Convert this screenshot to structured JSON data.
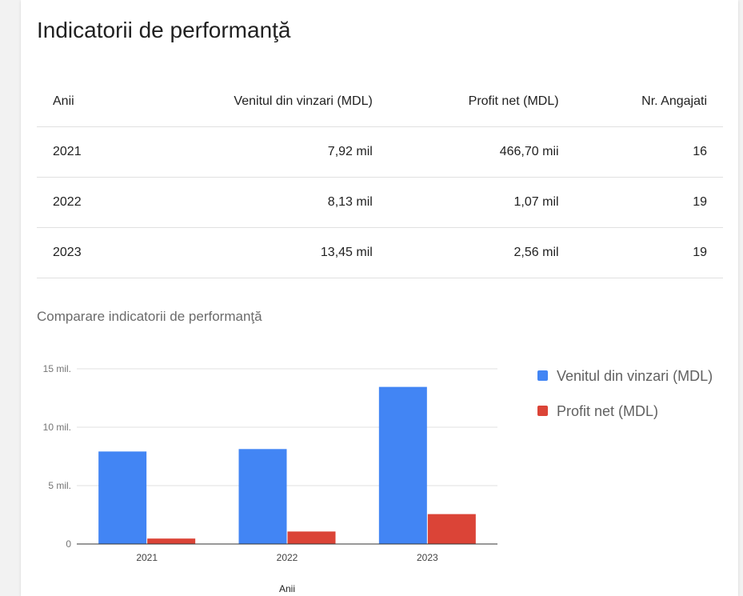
{
  "card": {
    "title": "Indicatorii de performanţă"
  },
  "table": {
    "headers": [
      "Anii",
      "Venitul din vinzari (MDL)",
      "Profit net (MDL)",
      "Nr. Angajati"
    ],
    "rows": [
      [
        "2021",
        "7,92 mil",
        "466,70 mii",
        "16"
      ],
      [
        "2022",
        "8,13 mil",
        "1,07 mil",
        "19"
      ],
      [
        "2023",
        "13,45 mil",
        "2,56 mil",
        "19"
      ]
    ]
  },
  "chart_data": {
    "type": "bar",
    "title": "Comparare indicatorii de performanţă",
    "xlabel": "Anii",
    "ylabel": "",
    "categories": [
      "2021",
      "2022",
      "2023"
    ],
    "series": [
      {
        "name": "Venitul din vinzari (MDL)",
        "values": [
          7.92,
          8.13,
          13.45
        ],
        "color": "#4285f4"
      },
      {
        "name": "Profit net (MDL)",
        "values": [
          0.4667,
          1.07,
          2.56
        ],
        "color": "#db4437"
      }
    ],
    "ylim": [
      0,
      15
    ],
    "yticks": [
      {
        "value": 0,
        "label": "0"
      },
      {
        "value": 5,
        "label": "5 mil."
      },
      {
        "value": 10,
        "label": "10 mil."
      },
      {
        "value": 15,
        "label": "15 mil."
      }
    ],
    "grid": true,
    "legend": "right"
  }
}
